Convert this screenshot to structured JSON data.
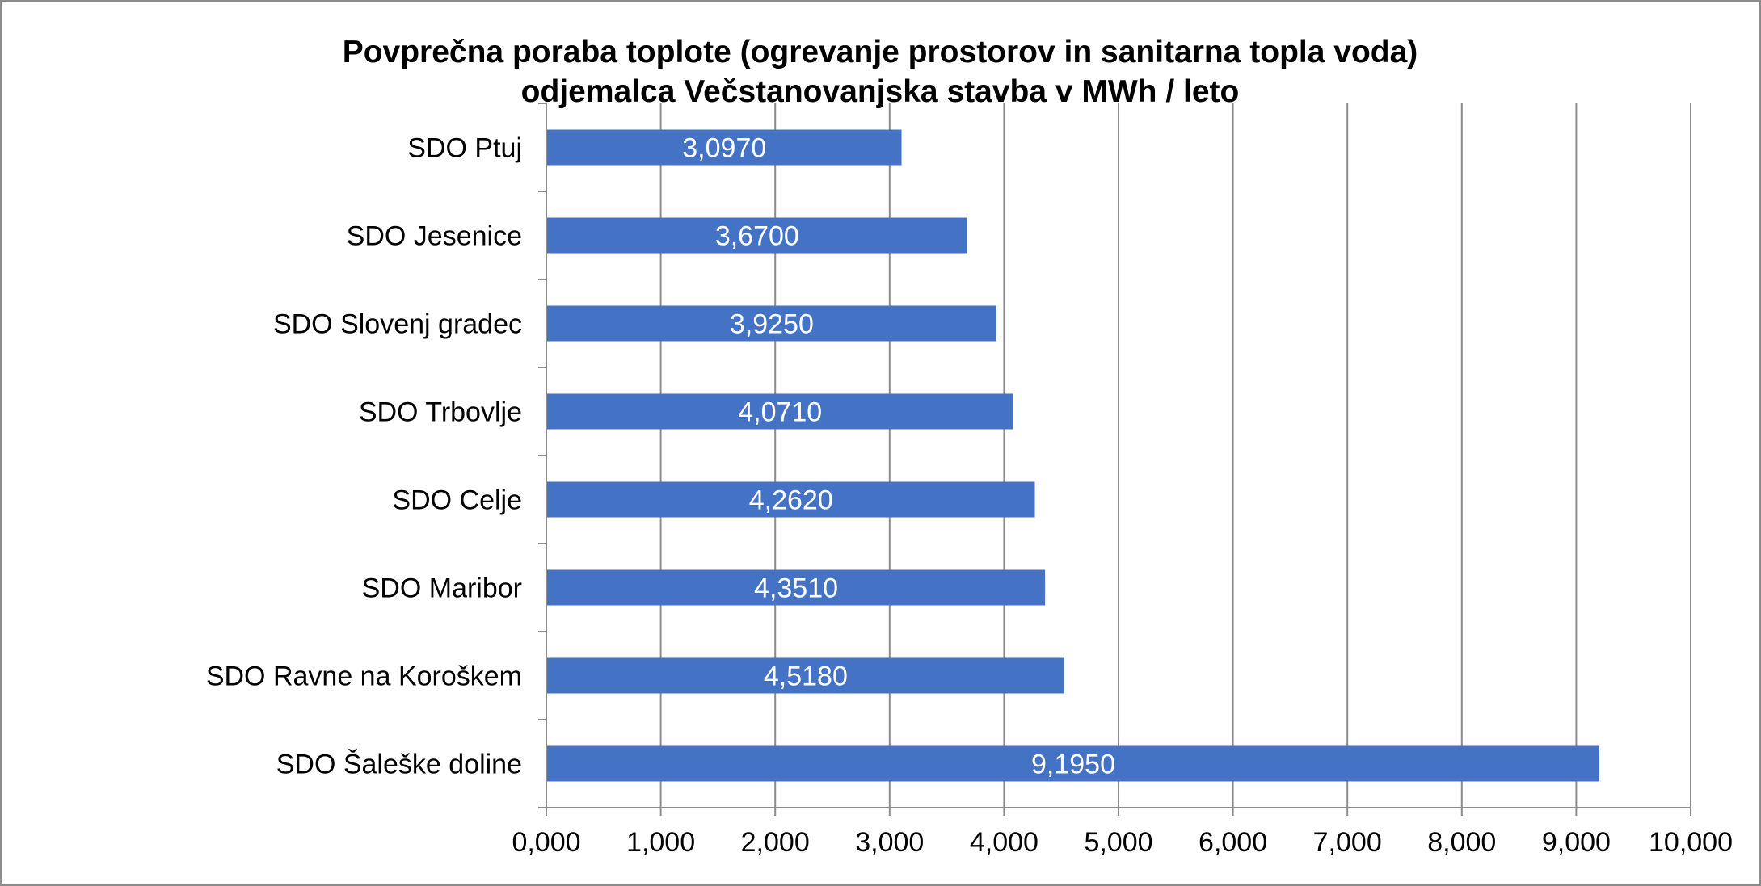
{
  "chart_data": {
    "type": "bar",
    "orientation": "horizontal",
    "title": "Povprečna poraba toplote (ogrevanje prostorov in sanitarna topla voda) odjemalca Večstanovanjska stavba v MWh / leto",
    "title_lines": [
      "Povprečna poraba toplote (ogrevanje prostorov in sanitarna topla voda)",
      "odjemalca Večstanovanjska stavba v MWh / leto"
    ],
    "categories": [
      "SDO Ptuj",
      "SDO Jesenice",
      "SDO Slovenj gradec",
      "SDO Trbovlje",
      "SDO Celje",
      "SDO Maribor",
      "SDO Ravne na Koroškem",
      "SDO Šaleške doline"
    ],
    "values": [
      3.097,
      3.67,
      3.925,
      4.071,
      4.262,
      4.351,
      4.518,
      9.195
    ],
    "data_labels": [
      "3,0970",
      "3,6700",
      "3,9250",
      "4,0710",
      "4,2620",
      "4,3510",
      "4,5180",
      "9,1950"
    ],
    "xlim": [
      0,
      10
    ],
    "x_ticks": [
      0,
      1,
      2,
      3,
      4,
      5,
      6,
      7,
      8,
      9,
      10
    ],
    "x_tick_labels": [
      "0,000",
      "1,000",
      "2,000",
      "3,000",
      "4,000",
      "5,000",
      "6,000",
      "7,000",
      "8,000",
      "9,000",
      "10,000"
    ],
    "grid": true,
    "legend": "none",
    "bar_color": "#4472C4",
    "label_color": "#FFFFFF",
    "grid_color": "#8C8C8C"
  }
}
